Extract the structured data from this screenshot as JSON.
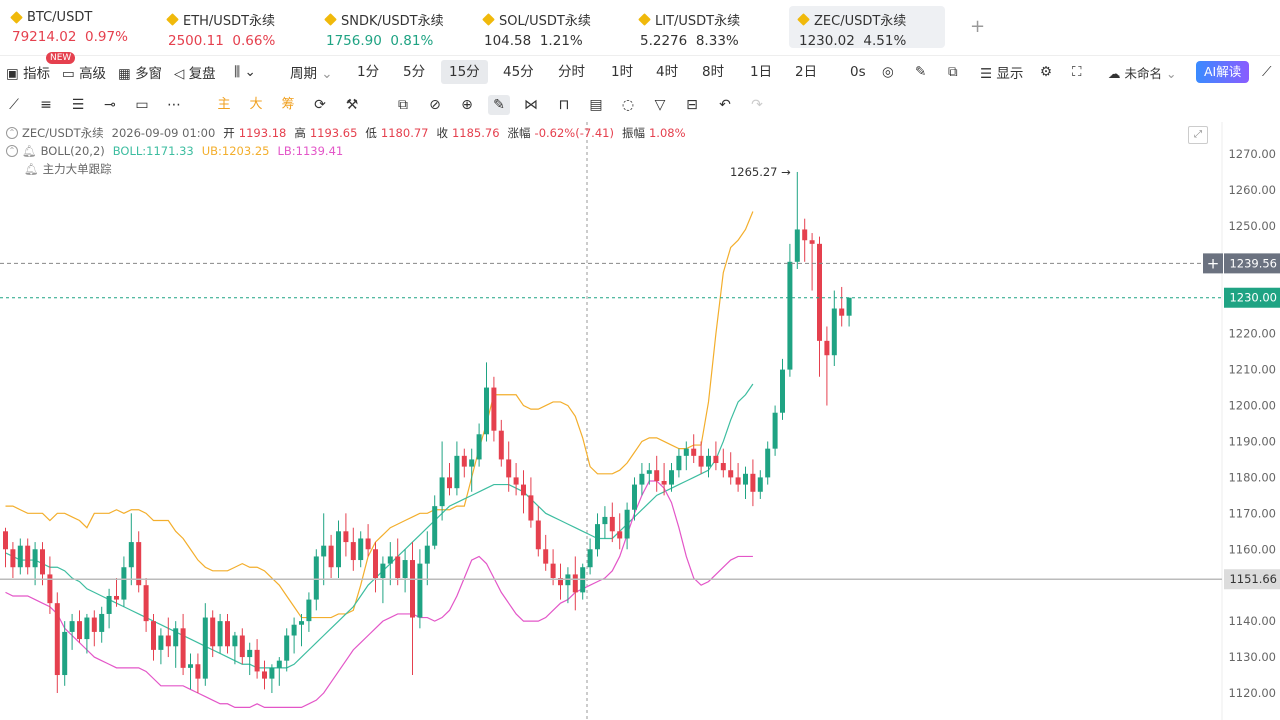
{
  "tickers": [
    {
      "symbol": "BTC/USDT",
      "price": "79214.02",
      "change": "0.97%",
      "dir": "dn"
    },
    {
      "symbol": "ETH/USDT永续",
      "price": "2500.11",
      "change": "0.66%",
      "dir": "dn"
    },
    {
      "symbol": "SNDK/USDT永续",
      "price": "1756.90",
      "change": "0.81%",
      "dir": "up"
    },
    {
      "symbol": "SOL/USDT永续",
      "price": "104.58",
      "change": "1.21%",
      "dir": "nt"
    },
    {
      "symbol": "LIT/USDT永续",
      "price": "5.2276",
      "change": "8.33%",
      "dir": "nt"
    },
    {
      "symbol": "ZEC/USDT永续",
      "price": "1230.02",
      "change": "4.51%",
      "dir": "nt"
    }
  ],
  "toolbar": {
    "indicators": "指标",
    "new_badge": "NEW",
    "advanced": "高级",
    "multi_window": "多窗",
    "replay": "复盘",
    "period_label": "周期",
    "periods": [
      "1分",
      "5分",
      "15分",
      "45分",
      "分时",
      "1时",
      "4时",
      "8时",
      "1日",
      "2日"
    ],
    "selected_period": "15分",
    "countdown": "0s",
    "display": "显示",
    "unnamed": "未命名",
    "ai_label": "AI解读"
  },
  "drawing_tools": {
    "main": "主",
    "big": "大",
    "chip": "筹"
  },
  "legend": {
    "symbol": "ZEC/USDT永续",
    "datetime": "2026-09-09 01:00",
    "open_label": "开",
    "open": "1193.18",
    "high_label": "高",
    "high": "1193.65",
    "low_label": "低",
    "low": "1180.77",
    "close_label": "收",
    "close": "1185.76",
    "chg_label": "涨幅",
    "chg": "-0.62%(-7.41)",
    "amp_label": "振幅",
    "amp": "1.08%",
    "boll_name": "BOLL(20,2)",
    "boll_mid": "BOLL:1171.33",
    "boll_ub": "UB:1203.25",
    "boll_lb": "LB:1139.41",
    "tracker": "主力大单跟踪"
  },
  "colors": {
    "up": "#1fa383",
    "down": "#e5404e",
    "boll": "#3dbda0",
    "ub": "#f3ae2c",
    "lb": "#e356c8",
    "accent": "#f0b90b"
  },
  "chart_data": {
    "type": "candlestick",
    "y_axis_ticks": [
      "1270.00",
      "1260.00",
      "1250.00",
      "1240.00",
      "1230.00",
      "1220.00",
      "1210.00",
      "1200.00",
      "1190.00",
      "1180.00",
      "1170.00",
      "1160.00",
      "1150.00",
      "1140.00",
      "1130.00",
      "1120.00"
    ],
    "ylim": [
      1117,
      1274
    ],
    "max_annotation": "1265.27",
    "crosshair_price": "1239.56",
    "last_price": "1230.00",
    "hover_price": "1151.66",
    "ub": [
      1172,
      1172,
      1171,
      1170,
      1170,
      1170,
      1168,
      1170,
      1170,
      1169,
      1168,
      1166,
      1170,
      1170,
      1170,
      1171,
      1170,
      1171,
      1171,
      1170,
      1168,
      1168,
      1168,
      1165,
      1163,
      1160,
      1157,
      1155,
      1154,
      1154,
      1154,
      1155,
      1156,
      1155,
      1155,
      1154,
      1152,
      1150,
      1147,
      1144,
      1141,
      1141,
      1141,
      1141,
      1141,
      1142,
      1142,
      1143,
      1150,
      1158,
      1162,
      1164,
      1166,
      1167,
      1168,
      1169,
      1170,
      1170,
      1171,
      1171,
      1171,
      1172,
      1172,
      1180,
      1188,
      1195,
      1203,
      1203,
      1203,
      1203,
      1200,
      1199,
      1199,
      1200,
      1201,
      1201,
      1200,
      1197,
      1191,
      1183,
      1181,
      1181,
      1181,
      1182,
      1184,
      1187,
      1190,
      1191,
      1191,
      1190,
      1189,
      1188,
      1188,
      1189,
      1189,
      1201,
      1220,
      1237,
      1244,
      1246,
      1249,
      1254
    ],
    "mid": [
      1159,
      1158,
      1157,
      1157,
      1157,
      1156,
      1155,
      1155,
      1154,
      1152,
      1151,
      1149,
      1148,
      1147,
      1146,
      1145,
      1144,
      1143,
      1142,
      1141,
      1140,
      1139,
      1138,
      1137,
      1136,
      1135,
      1134,
      1133,
      1132,
      1131,
      1130,
      1129,
      1128,
      1128,
      1127,
      1127,
      1127,
      1127,
      1127,
      1128,
      1130,
      1132,
      1134,
      1136,
      1138,
      1140,
      1142,
      1144,
      1147,
      1150,
      1152,
      1154,
      1156,
      1158,
      1160,
      1162,
      1164,
      1166,
      1168,
      1170,
      1172,
      1173,
      1174,
      1175,
      1176,
      1177,
      1178,
      1178,
      1178,
      1177,
      1176,
      1174,
      1172,
      1170,
      1169,
      1168,
      1167,
      1166,
      1165,
      1164,
      1163,
      1163,
      1163,
      1165,
      1167,
      1169,
      1171,
      1173,
      1175,
      1176,
      1177,
      1178,
      1179,
      1180,
      1181,
      1182,
      1185,
      1190,
      1196,
      1201,
      1203,
      1206
    ],
    "lb": [
      1148,
      1147,
      1147,
      1147,
      1146,
      1145,
      1144,
      1142,
      1138,
      1136,
      1134,
      1132,
      1130,
      1129,
      1128,
      1127,
      1127,
      1127,
      1127,
      1126,
      1124,
      1122,
      1122,
      1122,
      1122,
      1121,
      1120,
      1119,
      1118,
      1117,
      1117,
      1116,
      1116,
      1116,
      1117,
      1116,
      1116,
      1116,
      1116,
      1116,
      1116,
      1117,
      1118,
      1120,
      1123,
      1126,
      1129,
      1132,
      1134,
      1136,
      1138,
      1140,
      1141,
      1142,
      1142,
      1142,
      1141,
      1141,
      1140,
      1141,
      1143,
      1147,
      1152,
      1157,
      1158,
      1156,
      1152,
      1148,
      1145,
      1142,
      1140,
      1140,
      1140,
      1141,
      1143,
      1145,
      1146,
      1148,
      1149,
      1150,
      1151,
      1152,
      1154,
      1158,
      1164,
      1170,
      1175,
      1179,
      1179,
      1177,
      1173,
      1166,
      1158,
      1152,
      1150,
      1151,
      1153,
      1155,
      1157,
      1158,
      1158,
      1158
    ],
    "candles": [
      [
        1165,
        1166,
        1155,
        1160
      ],
      [
        1160,
        1162,
        1152,
        1155
      ],
      [
        1155,
        1163,
        1153,
        1161
      ],
      [
        1161,
        1163,
        1153,
        1155
      ],
      [
        1155,
        1162,
        1150,
        1160
      ],
      [
        1160,
        1162,
        1150,
        1153
      ],
      [
        1153,
        1158,
        1142,
        1145
      ],
      [
        1145,
        1148,
        1120,
        1125
      ],
      [
        1125,
        1140,
        1122,
        1137
      ],
      [
        1137,
        1142,
        1132,
        1140
      ],
      [
        1140,
        1143,
        1134,
        1135
      ],
      [
        1135,
        1142,
        1131,
        1141
      ],
      [
        1141,
        1143,
        1133,
        1137
      ],
      [
        1137,
        1144,
        1134,
        1142
      ],
      [
        1142,
        1149,
        1138,
        1147
      ],
      [
        1147,
        1152,
        1144,
        1146
      ],
      [
        1146,
        1158,
        1144,
        1155
      ],
      [
        1155,
        1170,
        1150,
        1162
      ],
      [
        1162,
        1165,
        1148,
        1150
      ],
      [
        1150,
        1152,
        1137,
        1140
      ],
      [
        1140,
        1142,
        1129,
        1132
      ],
      [
        1132,
        1138,
        1128,
        1136
      ],
      [
        1136,
        1141,
        1130,
        1133
      ],
      [
        1133,
        1140,
        1127,
        1138
      ],
      [
        1138,
        1142,
        1125,
        1127
      ],
      [
        1127,
        1131,
        1121,
        1128
      ],
      [
        1128,
        1131,
        1120,
        1124
      ],
      [
        1124,
        1145,
        1122,
        1141
      ],
      [
        1141,
        1143,
        1130,
        1133
      ],
      [
        1133,
        1142,
        1131,
        1140
      ],
      [
        1140,
        1142,
        1131,
        1133
      ],
      [
        1133,
        1137,
        1128,
        1136
      ],
      [
        1136,
        1138,
        1128,
        1130
      ],
      [
        1130,
        1134,
        1125,
        1132
      ],
      [
        1132,
        1135,
        1124,
        1126
      ],
      [
        1126,
        1129,
        1121,
        1124
      ],
      [
        1124,
        1128,
        1120,
        1127
      ],
      [
        1127,
        1130,
        1122,
        1129
      ],
      [
        1129,
        1138,
        1126,
        1136
      ],
      [
        1136,
        1141,
        1131,
        1139
      ],
      [
        1139,
        1142,
        1133,
        1140
      ],
      [
        1140,
        1148,
        1137,
        1146
      ],
      [
        1146,
        1160,
        1143,
        1158
      ],
      [
        1158,
        1170,
        1150,
        1161
      ],
      [
        1161,
        1164,
        1152,
        1155
      ],
      [
        1155,
        1168,
        1152,
        1165
      ],
      [
        1165,
        1170,
        1158,
        1162
      ],
      [
        1162,
        1166,
        1154,
        1157
      ],
      [
        1157,
        1165,
        1155,
        1163
      ],
      [
        1163,
        1167,
        1158,
        1160
      ],
      [
        1160,
        1162,
        1148,
        1152
      ],
      [
        1152,
        1158,
        1145,
        1156
      ],
      [
        1156,
        1162,
        1150,
        1158
      ],
      [
        1158,
        1163,
        1150,
        1152
      ],
      [
        1152,
        1160,
        1148,
        1157
      ],
      [
        1157,
        1162,
        1125,
        1141
      ],
      [
        1141,
        1160,
        1138,
        1156
      ],
      [
        1156,
        1165,
        1150,
        1161
      ],
      [
        1161,
        1175,
        1160,
        1172
      ],
      [
        1172,
        1190,
        1168,
        1180
      ],
      [
        1180,
        1184,
        1175,
        1177
      ],
      [
        1177,
        1190,
        1175,
        1186
      ],
      [
        1186,
        1188,
        1180,
        1183
      ],
      [
        1183,
        1188,
        1176,
        1185
      ],
      [
        1185,
        1195,
        1183,
        1192
      ],
      [
        1192,
        1212,
        1190,
        1205
      ],
      [
        1205,
        1208,
        1190,
        1193
      ],
      [
        1193,
        1196,
        1183,
        1185
      ],
      [
        1185,
        1190,
        1176,
        1180
      ],
      [
        1180,
        1184,
        1175,
        1178
      ],
      [
        1178,
        1182,
        1170,
        1175
      ],
      [
        1175,
        1180,
        1166,
        1168
      ],
      [
        1168,
        1172,
        1158,
        1160
      ],
      [
        1160,
        1164,
        1154,
        1156
      ],
      [
        1156,
        1160,
        1150,
        1152
      ],
      [
        1152,
        1156,
        1146,
        1150
      ],
      [
        1150,
        1155,
        1145,
        1153
      ],
      [
        1153,
        1158,
        1143,
        1148
      ],
      [
        1148,
        1156,
        1146,
        1155
      ],
      [
        1155,
        1163,
        1153,
        1160
      ],
      [
        1160,
        1170,
        1158,
        1167
      ],
      [
        1167,
        1172,
        1163,
        1169
      ],
      [
        1169,
        1173,
        1162,
        1165
      ],
      [
        1165,
        1170,
        1160,
        1163
      ],
      [
        1163,
        1173,
        1160,
        1171
      ],
      [
        1171,
        1180,
        1168,
        1178
      ],
      [
        1178,
        1184,
        1175,
        1181
      ],
      [
        1181,
        1184,
        1178,
        1182
      ],
      [
        1182,
        1186,
        1176,
        1179
      ],
      [
        1179,
        1184,
        1175,
        1178
      ],
      [
        1178,
        1184,
        1176,
        1182
      ],
      [
        1182,
        1188,
        1180,
        1186
      ],
      [
        1186,
        1190,
        1182,
        1188
      ],
      [
        1188,
        1192,
        1184,
        1186
      ],
      [
        1186,
        1190,
        1181,
        1183
      ],
      [
        1183,
        1188,
        1180,
        1186
      ],
      [
        1186,
        1190,
        1182,
        1184
      ],
      [
        1184,
        1188,
        1180,
        1182
      ],
      [
        1182,
        1187,
        1178,
        1180
      ],
      [
        1180,
        1184,
        1176,
        1178
      ],
      [
        1178,
        1183,
        1174,
        1181
      ],
      [
        1181,
        1185,
        1172,
        1176
      ],
      [
        1176,
        1182,
        1174,
        1180
      ],
      [
        1180,
        1190,
        1178,
        1188
      ],
      [
        1188,
        1200,
        1186,
        1198
      ],
      [
        1198,
        1213,
        1196,
        1210
      ],
      [
        1210,
        1245,
        1208,
        1240
      ],
      [
        1240,
        1265,
        1238,
        1249
      ],
      [
        1249,
        1252,
        1240,
        1246
      ],
      [
        1246,
        1248,
        1232,
        1245
      ],
      [
        1245,
        1247,
        1208,
        1218
      ],
      [
        1218,
        1222,
        1200,
        1214
      ],
      [
        1214,
        1232,
        1211,
        1227
      ],
      [
        1227,
        1233,
        1222,
        1225
      ],
      [
        1225,
        1230,
        1222,
        1230
      ]
    ]
  }
}
